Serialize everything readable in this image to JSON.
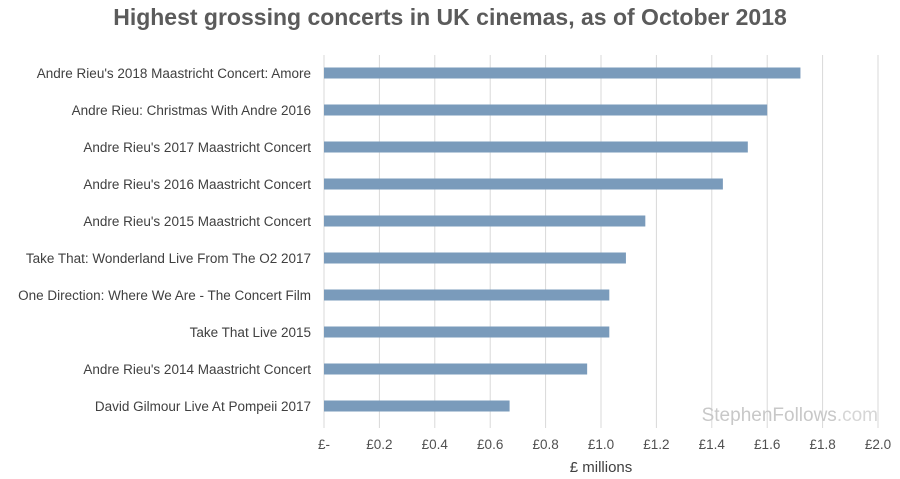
{
  "chart_data": {
    "type": "bar",
    "orientation": "horizontal",
    "title": "Highest grossing concerts in UK cinemas, as of October 2018",
    "xlabel": "£ millions",
    "ylabel": "",
    "xlim": [
      0,
      2.0
    ],
    "grid": true,
    "categories": [
      "Andre Rieu's 2018 Maastricht Concert: Amore",
      "Andre Rieu: Christmas With Andre 2016",
      "Andre Rieu's 2017 Maastricht Concert",
      "Andre Rieu's 2016 Maastricht Concert",
      "Andre Rieu's 2015 Maastricht Concert",
      "Take That: Wonderland Live From The O2 2017",
      "One Direction: Where We Are - The Concert Film",
      "Take That Live 2015",
      "Andre Rieu's 2014 Maastricht Concert",
      "David Gilmour Live At Pompeii 2017"
    ],
    "values": [
      1.72,
      1.6,
      1.53,
      1.44,
      1.16,
      1.09,
      1.03,
      1.03,
      0.95,
      0.67
    ],
    "x_ticks": [
      "£-",
      "£0.2",
      "£0.4",
      "£0.6",
      "£0.8",
      "£1.0",
      "£1.2",
      "£1.4",
      "£1.6",
      "£1.8",
      "£2.0"
    ],
    "bar_color": "#7a9bbb"
  },
  "watermark": {
    "name": "StephenFollows",
    "suffix": ".com"
  }
}
